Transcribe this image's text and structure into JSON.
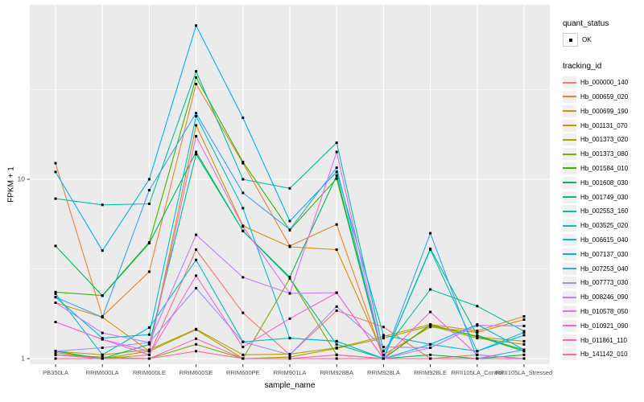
{
  "chart_data": {
    "type": "line",
    "scale_y": "log10",
    "xlabel": "sample_name",
    "ylabel": "FPKM + 1",
    "ylim": [
      1,
      90
    ],
    "y_major_ticks": [
      1,
      10
    ],
    "y_minor_gridlines": [
      3.162,
      31.62
    ],
    "grid": "on",
    "legend_position": "right",
    "panel_bg": "#EBEBEB",
    "grid_color": "#FFFFFF",
    "point_color": "#000000",
    "tick_text_color": "#4D4D4D",
    "categories": [
      "PB350LA",
      "RRIM600LA",
      "RRIM600LE",
      "RRIM600SE",
      "RRIM600PE",
      "RRIM901LA",
      "RRIM928BA",
      "RRIM928LA",
      "RRIM928LE",
      "RRII105LA_Control",
      "RRII105LA_Stressed"
    ],
    "series": [
      {
        "name": "Hb_000000_140",
        "color": "#F8766D",
        "values": [
          1.05,
          1.0,
          1.05,
          4.05,
          1.8,
          1.05,
          1.85,
          1.5,
          1.0,
          1.05,
          1.0
        ]
      },
      {
        "name": "Hb_000659_020",
        "color": "#EA8331",
        "values": [
          12.3,
          1.72,
          3.05,
          34.0,
          12.3,
          4.25,
          5.6,
          1.0,
          1.55,
          1.43,
          1.72
        ]
      },
      {
        "name": "Hb_000699_190",
        "color": "#D89000",
        "values": [
          2.05,
          1.7,
          1.1,
          20.0,
          5.5,
          4.2,
          4.05,
          1.05,
          1.5,
          1.4,
          1.65
        ]
      },
      {
        "name": "Hb_001131_070",
        "color": "#C09B00",
        "values": [
          1.1,
          1.05,
          1.12,
          1.46,
          1.05,
          1.06,
          1.15,
          1.33,
          1.55,
          1.32,
          1.25
        ]
      },
      {
        "name": "Hb_001373_020",
        "color": "#A3A500",
        "values": [
          1.08,
          1.0,
          1.1,
          1.45,
          1.0,
          1.02,
          1.14,
          1.3,
          1.52,
          1.3,
          1.2
        ]
      },
      {
        "name": "Hb_001373_080",
        "color": "#7CAE00",
        "values": [
          1.05,
          1.02,
          1.0,
          1.2,
          1.0,
          2.8,
          1.05,
          1.0,
          1.54,
          1.33,
          1.12
        ]
      },
      {
        "name": "Hb_001584_010",
        "color": "#39B600",
        "values": [
          2.35,
          2.25,
          4.45,
          37.0,
          12.5,
          5.2,
          10.1,
          1.0,
          1.54,
          1.33,
          1.1
        ]
      },
      {
        "name": "Hb_001608_030",
        "color": "#00BB4E",
        "values": [
          4.25,
          2.24,
          4.4,
          14.2,
          5.15,
          2.85,
          10.5,
          1.0,
          1.05,
          1.0,
          1.05
        ]
      },
      {
        "name": "Hb_001749_030",
        "color": "#00BF7D",
        "values": [
          1.1,
          1.0,
          1.2,
          13.8,
          5.15,
          2.8,
          1.2,
          1.0,
          4.1,
          1.35,
          1.1
        ]
      },
      {
        "name": "Hb_002553_160",
        "color": "#00C1A3",
        "values": [
          7.8,
          7.2,
          7.3,
          40.0,
          10.0,
          8.9,
          16.0,
          1.1,
          2.43,
          1.96,
          1.42
        ]
      },
      {
        "name": "Hb_003525_020",
        "color": "#00BFC4",
        "values": [
          2.3,
          1.05,
          1.49,
          3.55,
          1.24,
          1.3,
          1.25,
          1.0,
          4.05,
          1.1,
          1.4
        ]
      },
      {
        "name": "Hb_006615_040",
        "color": "#00BAE0",
        "values": [
          2.2,
          1.3,
          1.36,
          22.5,
          6.9,
          1.3,
          1.25,
          1.0,
          1.2,
          1.1,
          1.35
        ]
      },
      {
        "name": "Hb_007137_030",
        "color": "#00B0F6",
        "values": [
          11.0,
          4.0,
          10.0,
          72.0,
          22.0,
          5.85,
          11.0,
          1.35,
          1.2,
          1.55,
          1.12
        ]
      },
      {
        "name": "Hb_007253_040",
        "color": "#35A2FF",
        "values": [
          2.2,
          1.7,
          8.7,
          23.4,
          8.4,
          5.24,
          11.6,
          1.0,
          5.0,
          1.0,
          1.12
        ]
      },
      {
        "name": "Hb_007773_030",
        "color": "#9590FF",
        "values": [
          1.1,
          1.15,
          1.23,
          2.47,
          1.24,
          1.05,
          1.95,
          1.16,
          1.15,
          1.53,
          1.52
        ]
      },
      {
        "name": "Hb_008246_090",
        "color": "#C77CFF",
        "values": [
          2.05,
          1.39,
          1.23,
          4.9,
          2.84,
          2.31,
          2.33,
          1.0,
          1.15,
          1.53,
          1.52
        ]
      },
      {
        "name": "Hb_010578_050",
        "color": "#E76BF3",
        "values": [
          1.6,
          1.28,
          1.1,
          17.4,
          5.45,
          2.31,
          14.2,
          1.0,
          1.0,
          1.0,
          1.0
        ]
      },
      {
        "name": "Hb_010921_090",
        "color": "#FA62DB",
        "values": [
          1.6,
          1.28,
          1.05,
          2.9,
          1.16,
          1.67,
          2.33,
          1.0,
          1.82,
          1.05,
          1.0
        ]
      },
      {
        "name": "Hb_011861_110",
        "color": "#FF62BC",
        "values": [
          1.05,
          1.0,
          1.0,
          1.29,
          1.0,
          1.0,
          1.05,
          1.0,
          1.0,
          1.0,
          1.0
        ]
      },
      {
        "name": "Hb_141142_010",
        "color": "#FF6A98",
        "values": [
          1.0,
          1.0,
          1.0,
          1.1,
          1.0,
          1.0,
          1.0,
          1.0,
          1.0,
          1.0,
          1.0
        ]
      }
    ],
    "legend": {
      "quant_status_title": "quant_status",
      "quant_status_items": [
        {
          "label": "OK"
        }
      ],
      "tracking_title": "tracking_id"
    }
  }
}
